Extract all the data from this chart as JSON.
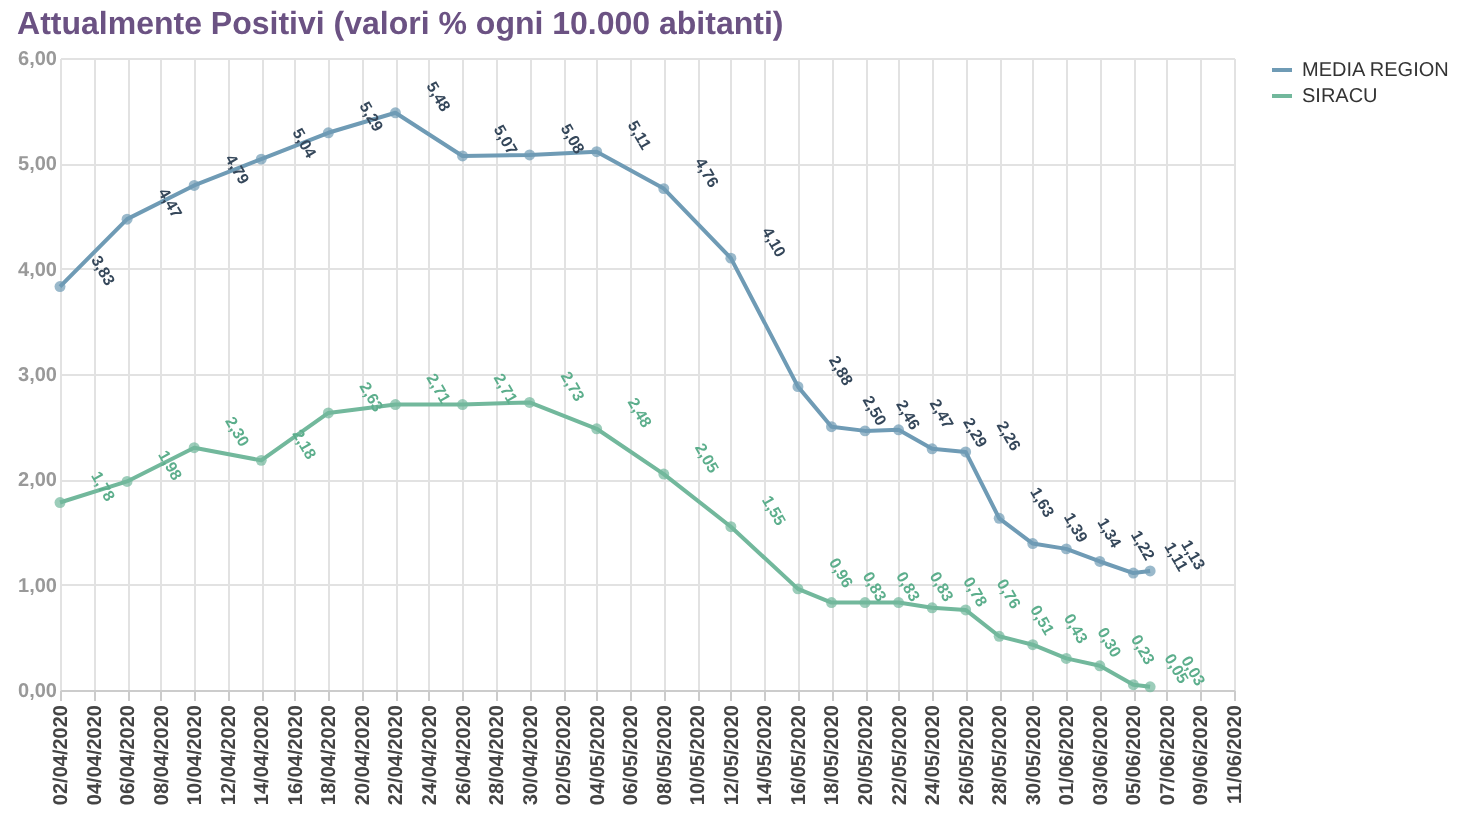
{
  "chart_data": {
    "type": "line",
    "title": "Attualmente Positivi (valori % ogni 10.000 abitanti)",
    "x": [
      "2020-04-02",
      "2020-04-06",
      "2020-04-10",
      "2020-04-14",
      "2020-04-18",
      "2020-04-22",
      "2020-04-26",
      "2020-04-30",
      "2020-05-04",
      "2020-05-08",
      "2020-05-12",
      "2020-05-16",
      "2020-05-18",
      "2020-05-20",
      "2020-05-22",
      "2020-05-24",
      "2020-05-26",
      "2020-05-28",
      "2020-05-30",
      "2020-06-01",
      "2020-06-03",
      "2020-06-05",
      "2020-06-06"
    ],
    "series": [
      {
        "name": "MEDIA REGION",
        "color": "#6f9bb5",
        "values": [
          3.83,
          4.47,
          4.79,
          5.04,
          5.29,
          5.48,
          5.07,
          5.08,
          5.11,
          4.76,
          4.1,
          2.88,
          2.5,
          2.46,
          2.47,
          2.29,
          2.26,
          1.63,
          1.39,
          1.34,
          1.22,
          1.11,
          1.13
        ],
        "value_labels": [
          "3,83",
          "4,47",
          "4,79",
          "5,04",
          "5,29",
          "5,48",
          "5,07",
          "5,08",
          "5,11",
          "4,76",
          "4,10",
          "2,88",
          "2,50",
          "2,46",
          "2,47",
          "2,29",
          "2,26",
          "1,63",
          "1,39",
          "1,34",
          "1,22",
          "1,11",
          "1,13"
        ]
      },
      {
        "name": "SIRACU",
        "color": "#72b89c",
        "values": [
          1.78,
          1.98,
          2.3,
          2.18,
          2.63,
          2.71,
          2.71,
          2.73,
          2.48,
          2.05,
          1.55,
          0.96,
          0.83,
          0.83,
          0.83,
          0.78,
          0.76,
          0.51,
          0.43,
          0.3,
          0.23,
          0.05,
          0.03
        ],
        "value_labels": [
          "1,78",
          "1,98",
          "2,30",
          "2,18",
          "2,63",
          "2,71",
          "2,71",
          "2,73",
          "2,48",
          "2,05",
          "1,55",
          "0,96",
          "0,83",
          "0,83",
          "0,83",
          "0,78",
          "0,76",
          "0,51",
          "0,43",
          "0,30",
          "0,23",
          "0,05",
          "0,03"
        ]
      }
    ],
    "xlim": [
      "2020-04-02",
      "2020-06-11"
    ],
    "xticks": [
      {
        "value": "2020-04-02",
        "label": "02/04/2020"
      },
      {
        "value": "2020-04-04",
        "label": "04/04/2020"
      },
      {
        "value": "2020-04-06",
        "label": "06/04/2020"
      },
      {
        "value": "2020-04-08",
        "label": "08/04/2020"
      },
      {
        "value": "2020-04-10",
        "label": "10/04/2020"
      },
      {
        "value": "2020-04-12",
        "label": "12/04/2020"
      },
      {
        "value": "2020-04-14",
        "label": "14/04/2020"
      },
      {
        "value": "2020-04-16",
        "label": "16/04/2020"
      },
      {
        "value": "2020-04-18",
        "label": "18/04/2020"
      },
      {
        "value": "2020-04-20",
        "label": "20/04/2020"
      },
      {
        "value": "2020-04-22",
        "label": "22/04/2020"
      },
      {
        "value": "2020-04-24",
        "label": "24/04/2020"
      },
      {
        "value": "2020-04-26",
        "label": "26/04/2020"
      },
      {
        "value": "2020-04-28",
        "label": "28/04/2020"
      },
      {
        "value": "2020-04-30",
        "label": "30/04/2020"
      },
      {
        "value": "2020-05-02",
        "label": "02/05/2020"
      },
      {
        "value": "2020-05-04",
        "label": "04/05/2020"
      },
      {
        "value": "2020-05-06",
        "label": "06/05/2020"
      },
      {
        "value": "2020-05-08",
        "label": "08/05/2020"
      },
      {
        "value": "2020-05-10",
        "label": "10/05/2020"
      },
      {
        "value": "2020-05-12",
        "label": "12/05/2020"
      },
      {
        "value": "2020-05-14",
        "label": "14/05/2020"
      },
      {
        "value": "2020-05-16",
        "label": "16/05/2020"
      },
      {
        "value": "2020-05-18",
        "label": "18/05/2020"
      },
      {
        "value": "2020-05-20",
        "label": "20/05/2020"
      },
      {
        "value": "2020-05-22",
        "label": "22/05/2020"
      },
      {
        "value": "2020-05-24",
        "label": "24/05/2020"
      },
      {
        "value": "2020-05-26",
        "label": "26/05/2020"
      },
      {
        "value": "2020-05-28",
        "label": "28/05/2020"
      },
      {
        "value": "2020-05-30",
        "label": "30/05/2020"
      },
      {
        "value": "2020-06-01",
        "label": "01/06/2020"
      },
      {
        "value": "2020-06-03",
        "label": "03/06/2020"
      },
      {
        "value": "2020-06-05",
        "label": "05/06/2020"
      },
      {
        "value": "2020-06-07",
        "label": "07/06/2020"
      },
      {
        "value": "2020-06-09",
        "label": "09/06/2020"
      },
      {
        "value": "2020-06-11",
        "label": "11/06/2020"
      }
    ],
    "ylim": [
      0,
      6
    ],
    "yticks": [
      {
        "value": 0,
        "label": "0,00"
      },
      {
        "value": 1,
        "label": "1,00"
      },
      {
        "value": 2,
        "label": "2,00"
      },
      {
        "value": 3,
        "label": "3,00"
      },
      {
        "value": 4,
        "label": "4,00"
      },
      {
        "value": 5,
        "label": "5,00"
      },
      {
        "value": 6,
        "label": "6,00"
      }
    ],
    "grid": true,
    "legend": "right",
    "marker": "circle",
    "line_style": "solid"
  }
}
